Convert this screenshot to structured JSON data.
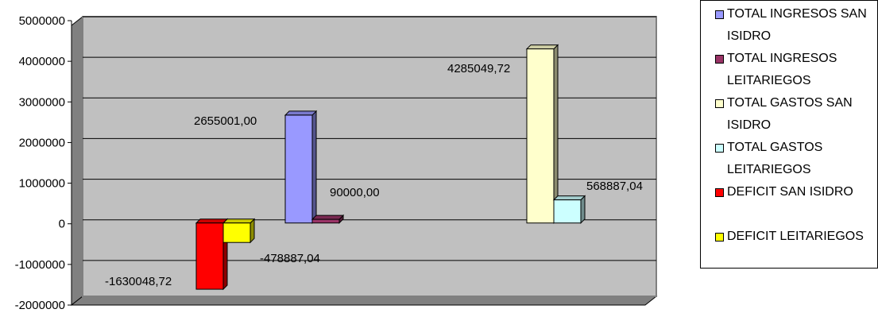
{
  "chart_data": {
    "type": "bar",
    "title": "",
    "xlabel": "",
    "ylabel": "",
    "ylim": [
      -2000000,
      5000000
    ],
    "yticks": [
      "5000000",
      "4000000",
      "3000000",
      "2000000",
      "1000000",
      "0",
      "-1000000",
      "-2000000"
    ],
    "ytick_values": [
      5000000,
      4000000,
      3000000,
      2000000,
      1000000,
      0,
      -1000000,
      -2000000
    ],
    "grid": "horizontal",
    "legend_position": "right",
    "plot_background": "#c0c0c0",
    "series": [
      {
        "name": "TOTAL INGRESOS SAN ISIDRO",
        "value": 2655001.0,
        "label": "2655001,00",
        "color": "#9999ff"
      },
      {
        "name": "TOTAL INGRESOS LEITARIEGOS",
        "value": 90000.0,
        "label": "90000,00",
        "color": "#993366"
      },
      {
        "name": "TOTAL GASTOS SAN ISIDRO",
        "value": 4285049.72,
        "label": "4285049,72",
        "color": "#ffffcc"
      },
      {
        "name": "TOTAL GASTOS LEITARIEGOS",
        "value": 568887.04,
        "label": "568887,04",
        "color": "#ccffff"
      },
      {
        "name": "DEFICIT SAN ISIDRO",
        "value": -1630048.72,
        "label": "-1630048,72",
        "color": "#ff0000"
      },
      {
        "name": "DEFICIT LEITARIEGOS",
        "value": -478887.04,
        "label": "-478887,04",
        "color": "#ffff00"
      }
    ]
  }
}
